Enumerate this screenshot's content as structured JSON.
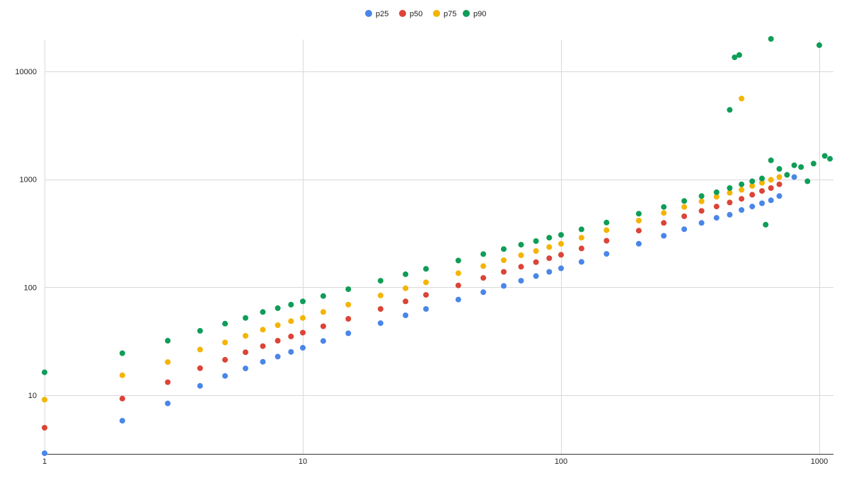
{
  "chart_data": {
    "type": "scatter",
    "title": "",
    "xlabel": "",
    "ylabel": "",
    "x_scale": "log",
    "y_scale": "log",
    "xlim": [
      1,
      1150
    ],
    "ylim": [
      2.8,
      20000
    ],
    "x_ticks": [
      1,
      10,
      100,
      1000
    ],
    "y_ticks": [
      10,
      100,
      1000,
      10000
    ],
    "x_tick_labels": [
      "1",
      "10",
      "100",
      "1000"
    ],
    "y_tick_labels": [
      "10",
      "100",
      "1000",
      "10000"
    ],
    "grid": true,
    "legend_position": "top-center",
    "series": [
      {
        "name": "p25",
        "color": "#4a86e8",
        "points": [
          [
            1,
            2.9
          ],
          [
            2,
            5.8
          ],
          [
            3,
            8.4
          ],
          [
            4,
            12.2
          ],
          [
            5,
            15.1
          ],
          [
            6,
            17.7
          ],
          [
            7,
            20.4
          ],
          [
            8,
            22.8
          ],
          [
            9,
            25.2
          ],
          [
            10,
            27.5
          ],
          [
            12,
            31.8
          ],
          [
            15,
            37.5
          ],
          [
            20,
            46.5
          ],
          [
            25,
            55
          ],
          [
            30,
            63
          ],
          [
            40,
            77
          ],
          [
            50,
            90
          ],
          [
            60,
            103
          ],
          [
            70,
            115
          ],
          [
            80,
            127
          ],
          [
            90,
            139
          ],
          [
            100,
            150
          ],
          [
            120,
            172
          ],
          [
            150,
            204
          ],
          [
            200,
            253
          ],
          [
            250,
            300
          ],
          [
            300,
            345
          ],
          [
            350,
            395
          ],
          [
            400,
            440
          ],
          [
            450,
            470
          ],
          [
            500,
            520
          ],
          [
            550,
            560
          ],
          [
            600,
            600
          ],
          [
            650,
            640
          ],
          [
            700,
            700
          ],
          [
            800,
            1050
          ]
        ]
      },
      {
        "name": "p50",
        "color": "#db4437",
        "points": [
          [
            1,
            5
          ],
          [
            2,
            9.3
          ],
          [
            3,
            13.2
          ],
          [
            4,
            17.8
          ],
          [
            5,
            21.3
          ],
          [
            6,
            25
          ],
          [
            7,
            28.5
          ],
          [
            8,
            32
          ],
          [
            9,
            35
          ],
          [
            10,
            38
          ],
          [
            12,
            43.5
          ],
          [
            15,
            51
          ],
          [
            20,
            63
          ],
          [
            25,
            74
          ],
          [
            30,
            85
          ],
          [
            40,
            104
          ],
          [
            50,
            122
          ],
          [
            60,
            139
          ],
          [
            70,
            155
          ],
          [
            80,
            171
          ],
          [
            90,
            186
          ],
          [
            100,
            200
          ],
          [
            120,
            229
          ],
          [
            150,
            270
          ],
          [
            200,
            335
          ],
          [
            250,
            395
          ],
          [
            300,
            455
          ],
          [
            350,
            510
          ],
          [
            400,
            560
          ],
          [
            450,
            610
          ],
          [
            500,
            660
          ],
          [
            550,
            720
          ],
          [
            600,
            780
          ],
          [
            650,
            830
          ],
          [
            700,
            900
          ]
        ]
      },
      {
        "name": "p75",
        "color": "#f4b400",
        "points": [
          [
            1,
            9.1
          ],
          [
            2,
            15.3
          ],
          [
            3,
            20.3
          ],
          [
            4,
            26.5
          ],
          [
            5,
            30.8
          ],
          [
            6,
            35.5
          ],
          [
            7,
            40.5
          ],
          [
            8,
            44.5
          ],
          [
            9,
            48.5
          ],
          [
            10,
            52
          ],
          [
            12,
            59
          ],
          [
            15,
            69
          ],
          [
            20,
            84
          ],
          [
            25,
            98
          ],
          [
            30,
            111
          ],
          [
            40,
            135
          ],
          [
            50,
            157
          ],
          [
            60,
            178
          ],
          [
            70,
            198
          ],
          [
            80,
            217
          ],
          [
            90,
            236
          ],
          [
            100,
            253
          ],
          [
            120,
            288
          ],
          [
            150,
            338
          ],
          [
            200,
            415
          ],
          [
            250,
            488
          ],
          [
            300,
            555
          ],
          [
            350,
            625
          ],
          [
            400,
            690
          ],
          [
            450,
            750
          ],
          [
            500,
            800
          ],
          [
            500,
            5600
          ],
          [
            550,
            870
          ],
          [
            600,
            930
          ],
          [
            650,
            990
          ],
          [
            700,
            1050
          ]
        ]
      },
      {
        "name": "p90",
        "color": "#0f9d58",
        "points": [
          [
            1,
            16.3
          ],
          [
            2,
            24.5
          ],
          [
            3,
            32
          ],
          [
            4,
            39.5
          ],
          [
            5,
            46
          ],
          [
            6,
            52
          ],
          [
            7,
            59
          ],
          [
            8,
            64
          ],
          [
            9,
            69
          ],
          [
            10,
            74
          ],
          [
            12,
            83
          ],
          [
            15,
            96
          ],
          [
            20,
            115
          ],
          [
            25,
            132
          ],
          [
            30,
            148
          ],
          [
            40,
            177
          ],
          [
            50,
            203
          ],
          [
            60,
            226
          ],
          [
            70,
            248
          ],
          [
            80,
            268
          ],
          [
            90,
            288
          ],
          [
            100,
            306
          ],
          [
            120,
            344
          ],
          [
            150,
            398
          ],
          [
            200,
            480
          ],
          [
            250,
            555
          ],
          [
            300,
            630
          ],
          [
            350,
            700
          ],
          [
            400,
            760
          ],
          [
            450,
            830
          ],
          [
            450,
            4400
          ],
          [
            470,
            13500
          ],
          [
            490,
            14200
          ],
          [
            500,
            900
          ],
          [
            550,
            960
          ],
          [
            600,
            1020
          ],
          [
            620,
            380
          ],
          [
            650,
            20000
          ],
          [
            650,
            1500
          ],
          [
            700,
            1250
          ],
          [
            750,
            1100
          ],
          [
            800,
            1350
          ],
          [
            850,
            1300
          ],
          [
            900,
            960
          ],
          [
            950,
            1400
          ],
          [
            1000,
            17500
          ],
          [
            1050,
            1650
          ],
          [
            1100,
            1550
          ]
        ]
      }
    ]
  }
}
